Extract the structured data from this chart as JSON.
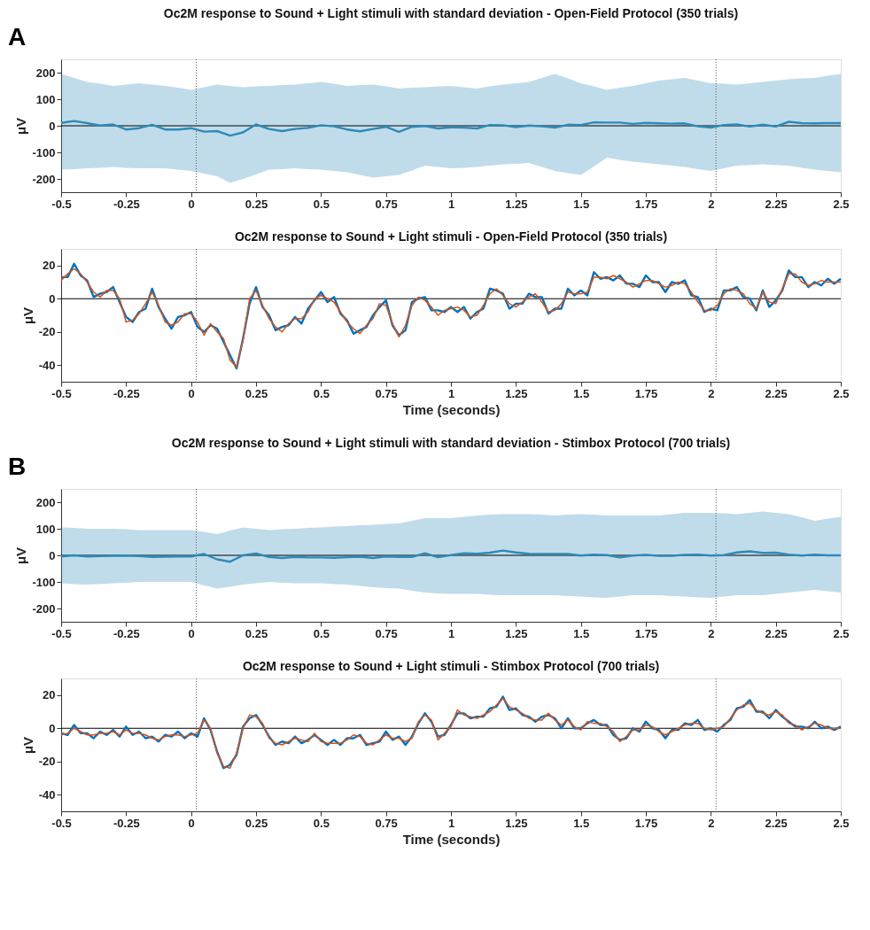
{
  "chart_data": [
    {
      "type": "line",
      "title": "Oc2M response to Sound + Light stimuli with standard deviation - Open-Field Protocol (350 trials)",
      "ylabel": "μV",
      "annotations": [
        "A"
      ],
      "xlim": [
        -0.5,
        2.5
      ],
      "ylim": [
        -250,
        250
      ],
      "xticks": [
        -0.5,
        -0.25,
        0,
        0.25,
        0.5,
        0.75,
        1,
        1.25,
        1.5,
        1.75,
        2,
        2.25,
        2.5
      ],
      "yticks": [
        -200,
        -100,
        0,
        100,
        200
      ],
      "x": [
        -0.5,
        -0.45,
        -0.4,
        -0.35,
        -0.3,
        -0.25,
        -0.2,
        -0.15,
        -0.1,
        -0.05,
        0,
        0.05,
        0.1,
        0.15,
        0.2,
        0.25,
        0.3,
        0.35,
        0.4,
        0.45,
        0.5,
        0.55,
        0.6,
        0.65,
        0.7,
        0.75,
        0.8,
        0.85,
        0.9,
        0.95,
        1,
        1.05,
        1.1,
        1.15,
        1.2,
        1.25,
        1.3,
        1.35,
        1.4,
        1.45,
        1.5,
        1.55,
        1.6,
        1.65,
        1.7,
        1.75,
        1.8,
        1.85,
        1.9,
        1.95,
        2,
        2.05,
        2.1,
        2.15,
        2.2,
        2.25,
        2.3,
        2.35,
        2.4,
        2.45,
        2.5
      ],
      "series": [
        {
          "color": "#2e8ab8",
          "values": [
            11,
            18,
            10,
            1,
            5,
            -14,
            -9,
            4,
            -14,
            -14,
            -9,
            -22,
            -20,
            -37,
            -25,
            5,
            -12,
            -20,
            -12,
            -8,
            2,
            -2,
            -14,
            -21,
            -12,
            -4,
            -23,
            -4,
            -1,
            -10,
            -6,
            -7,
            -10,
            3,
            2,
            -5,
            1,
            -2,
            -7,
            4,
            3,
            13,
            12,
            12,
            7,
            11,
            9,
            8,
            9,
            -2,
            -7,
            3,
            5,
            -3,
            4,
            -3,
            15,
            10,
            9,
            10,
            10
          ],
          "upper": [
            195,
            180,
            165,
            158,
            150,
            155,
            160,
            155,
            150,
            143,
            135,
            145,
            155,
            150,
            145,
            148,
            150,
            153,
            155,
            160,
            165,
            158,
            150,
            153,
            155,
            148,
            140,
            143,
            145,
            148,
            150,
            145,
            140,
            148,
            155,
            160,
            165,
            180,
            195,
            178,
            160,
            148,
            135,
            143,
            150,
            160,
            170,
            175,
            180,
            170,
            160,
            158,
            155,
            160,
            165,
            170,
            175,
            178,
            180,
            188,
            195
          ],
          "lower": [
            -165,
            -163,
            -160,
            -158,
            -155,
            -158,
            -160,
            -160,
            -160,
            -165,
            -170,
            -180,
            -190,
            -215,
            -200,
            -183,
            -165,
            -163,
            -160,
            -163,
            -165,
            -170,
            -175,
            -185,
            -195,
            -190,
            -185,
            -168,
            -150,
            -155,
            -160,
            -158,
            -155,
            -150,
            -145,
            -143,
            -140,
            -155,
            -170,
            -178,
            -185,
            -153,
            -120,
            -128,
            -135,
            -140,
            -145,
            -150,
            -155,
            -163,
            -170,
            -160,
            -150,
            -148,
            -145,
            -148,
            -150,
            -158,
            -165,
            -170,
            -175
          ]
        }
      ],
      "ref_lines": [
        {
          "axis": "y",
          "value": 0,
          "color": "#000000",
          "line_style": "solid"
        },
        {
          "axis": "x",
          "value": 0.02,
          "color": "#555555",
          "line_style": "dotted"
        },
        {
          "axis": "x",
          "value": 2.02,
          "color": "#555555",
          "line_style": "dotted"
        }
      ]
    },
    {
      "type": "line",
      "title": "Oc2M response to Sound + Light stimuli - Open-Field Protocol (350 trials)",
      "xlabel": "Time (seconds)",
      "ylabel": "μV",
      "xlim": [
        -0.5,
        2.5
      ],
      "ylim": [
        -50,
        30
      ],
      "xticks": [
        -0.5,
        -0.25,
        0,
        0.25,
        0.5,
        0.75,
        1,
        1.25,
        1.5,
        1.75,
        2,
        2.25,
        2.5
      ],
      "yticks": [
        -40,
        -20,
        0,
        20
      ],
      "x": [
        -0.5,
        -0.475,
        -0.45,
        -0.425,
        -0.4,
        -0.375,
        -0.35,
        -0.325,
        -0.3,
        -0.275,
        -0.25,
        -0.225,
        -0.2,
        -0.175,
        -0.15,
        -0.125,
        -0.1,
        -0.075,
        -0.05,
        -0.025,
        0,
        0.025,
        0.05,
        0.075,
        0.1,
        0.125,
        0.15,
        0.175,
        0.2,
        0.225,
        0.25,
        0.275,
        0.3,
        0.325,
        0.35,
        0.375,
        0.4,
        0.425,
        0.45,
        0.475,
        0.5,
        0.525,
        0.55,
        0.575,
        0.6,
        0.625,
        0.65,
        0.675,
        0.7,
        0.725,
        0.75,
        0.775,
        0.8,
        0.825,
        0.85,
        0.875,
        0.9,
        0.925,
        0.95,
        0.975,
        1,
        1.025,
        1.05,
        1.075,
        1.1,
        1.125,
        1.15,
        1.175,
        1.2,
        1.225,
        1.25,
        1.275,
        1.3,
        1.325,
        1.35,
        1.375,
        1.4,
        1.425,
        1.45,
        1.475,
        1.5,
        1.525,
        1.55,
        1.575,
        1.6,
        1.625,
        1.65,
        1.675,
        1.7,
        1.725,
        1.75,
        1.775,
        1.8,
        1.825,
        1.85,
        1.875,
        1.9,
        1.925,
        1.95,
        1.975,
        2,
        2.025,
        2.05,
        2.075,
        2.1,
        2.125,
        2.15,
        2.175,
        2.2,
        2.225,
        2.25,
        2.275,
        2.3,
        2.325,
        2.35,
        2.375,
        2.4,
        2.425,
        2.45,
        2.475,
        2.5
      ],
      "series": [
        {
          "color": "#0072bd",
          "values": [
            13,
            13,
            21,
            14,
            11,
            1,
            3,
            4,
            7,
            -2,
            -11,
            -14,
            -8,
            -6,
            6,
            -5,
            -12,
            -18,
            -11,
            -10,
            -8,
            -17,
            -20,
            -16,
            -18,
            -26,
            -34,
            -42,
            -24,
            -3,
            7,
            -5,
            -10,
            -19,
            -17,
            -16,
            -11,
            -15,
            -6,
            -1,
            4,
            -2,
            1,
            -9,
            -13,
            -21,
            -19,
            -17,
            -10,
            -5,
            -1,
            -16,
            -22,
            -19,
            -2,
            0,
            1,
            -7,
            -7,
            -8,
            -5,
            -8,
            -5,
            -12,
            -8,
            -6,
            6,
            5,
            3,
            -6,
            -3,
            -3,
            3,
            1,
            1,
            -9,
            -6,
            -6,
            6,
            2,
            5,
            2,
            16,
            12,
            13,
            11,
            14,
            9,
            9,
            7,
            14,
            10,
            10,
            4,
            10,
            9,
            11,
            2,
            1,
            -8,
            -6,
            -7,
            5,
            5,
            7,
            1,
            0,
            -7,
            5,
            -5,
            -1,
            5,
            17,
            13,
            13,
            7,
            10,
            8,
            12,
            9,
            12
          ]
        },
        {
          "color": "#d95319",
          "values": [
            11,
            15,
            18,
            15,
            10,
            4,
            1,
            5,
            5,
            0,
            -14,
            -13,
            -9,
            -3,
            4,
            -4,
            -14,
            -16,
            -14,
            -9,
            -9,
            -14,
            -22,
            -15,
            -20,
            -24,
            -37,
            -41,
            -25,
            0,
            5,
            -4,
            -12,
            -17,
            -20,
            -15,
            -12,
            -12,
            -8,
            0,
            2,
            0,
            -2,
            -8,
            -14,
            -18,
            -21,
            -16,
            -12,
            -3,
            -4,
            -15,
            -23,
            -16,
            -4,
            1,
            -1,
            -5,
            -10,
            -7,
            -6,
            -5,
            -7,
            -11,
            -10,
            -4,
            3,
            6,
            2,
            -3,
            -5,
            -2,
            1,
            3,
            -2,
            -8,
            -7,
            -3,
            4,
            3,
            3,
            4,
            13,
            13,
            12,
            14,
            12,
            10,
            7,
            9,
            11,
            11,
            9,
            7,
            8,
            10,
            9,
            4,
            -2,
            -7,
            -7,
            -4,
            3,
            6,
            5,
            3,
            -3,
            -6,
            4,
            -2,
            -3,
            6,
            15,
            15,
            10,
            8,
            9,
            11,
            10,
            10,
            10
          ]
        }
      ],
      "ref_lines": [
        {
          "axis": "y",
          "value": 0,
          "color": "#000000",
          "line_style": "solid"
        },
        {
          "axis": "x",
          "value": 0.02,
          "color": "#555555",
          "line_style": "dotted"
        },
        {
          "axis": "x",
          "value": 2.02,
          "color": "#555555",
          "line_style": "dotted"
        }
      ]
    },
    {
      "type": "line",
      "title": "Oc2M response to Sound + Light stimuli with standard deviation - Stimbox Protocol (700 trials)",
      "ylabel": "μV",
      "annotations": [
        "B"
      ],
      "xlim": [
        -0.5,
        2.5
      ],
      "ylim": [
        -250,
        250
      ],
      "xticks": [
        -0.5,
        -0.25,
        0,
        0.25,
        0.5,
        0.75,
        1,
        1.25,
        1.5,
        1.75,
        2,
        2.25,
        2.5
      ],
      "yticks": [
        -200,
        -100,
        0,
        100,
        200
      ],
      "x": [
        -0.5,
        -0.45,
        -0.4,
        -0.35,
        -0.3,
        -0.25,
        -0.2,
        -0.15,
        -0.1,
        -0.05,
        0,
        0.05,
        0.1,
        0.15,
        0.2,
        0.25,
        0.3,
        0.35,
        0.4,
        0.45,
        0.5,
        0.55,
        0.6,
        0.65,
        0.7,
        0.75,
        0.8,
        0.85,
        0.9,
        0.95,
        1,
        1.05,
        1.1,
        1.15,
        1.2,
        1.25,
        1.3,
        1.35,
        1.4,
        1.45,
        1.5,
        1.55,
        1.6,
        1.65,
        1.7,
        1.75,
        1.8,
        1.85,
        1.9,
        1.95,
        2,
        2.05,
        2.1,
        2.15,
        2.2,
        2.25,
        2.3,
        2.35,
        2.4,
        2.45,
        2.5
      ],
      "series": [
        {
          "color": "#2e8ab8",
          "values": [
            -4,
            0,
            -4,
            -3,
            -2,
            -1,
            -3,
            -6,
            -5,
            -4,
            -4,
            5,
            -15,
            -24,
            0,
            7,
            -6,
            -10,
            -6,
            -8,
            -8,
            -9,
            -7,
            -5,
            -10,
            -4,
            -6,
            -6,
            8,
            -7,
            1,
            8,
            6,
            10,
            18,
            11,
            6,
            5,
            5,
            5,
            -1,
            3,
            1,
            -8,
            -1,
            2,
            -2,
            -2,
            2,
            3,
            -1,
            1,
            11,
            15,
            9,
            10,
            3,
            -1,
            3,
            0,
            0
          ],
          "upper": [
            105,
            103,
            100,
            100,
            100,
            98,
            95,
            95,
            95,
            95,
            95,
            88,
            80,
            93,
            105,
            100,
            95,
            98,
            100,
            103,
            105,
            108,
            110,
            113,
            115,
            118,
            120,
            130,
            140,
            140,
            140,
            145,
            150,
            153,
            155,
            155,
            155,
            153,
            150,
            153,
            155,
            153,
            150,
            150,
            150,
            150,
            150,
            155,
            160,
            160,
            160,
            158,
            155,
            160,
            165,
            160,
            155,
            143,
            130,
            138,
            145
          ],
          "lower": [
            -105,
            -108,
            -110,
            -108,
            -105,
            -103,
            -100,
            -100,
            -100,
            -100,
            -100,
            -113,
            -125,
            -118,
            -110,
            -105,
            -100,
            -103,
            -105,
            -105,
            -105,
            -108,
            -110,
            -115,
            -120,
            -123,
            -125,
            -133,
            -140,
            -143,
            -145,
            -145,
            -145,
            -148,
            -150,
            -150,
            -150,
            -150,
            -150,
            -153,
            -155,
            -158,
            -160,
            -155,
            -150,
            -150,
            -150,
            -153,
            -155,
            -158,
            -160,
            -155,
            -150,
            -150,
            -150,
            -145,
            -140,
            -135,
            -130,
            -135,
            -140
          ]
        }
      ],
      "ref_lines": [
        {
          "axis": "y",
          "value": 0,
          "color": "#000000",
          "line_style": "solid"
        },
        {
          "axis": "x",
          "value": 0.02,
          "color": "#555555",
          "line_style": "dotted"
        },
        {
          "axis": "x",
          "value": 2.02,
          "color": "#555555",
          "line_style": "dotted"
        }
      ]
    },
    {
      "type": "line",
      "title": "Oc2M response to Sound + Light stimuli - Stimbox Protocol (700 trials)",
      "xlabel": "Time (seconds)",
      "ylabel": "μV",
      "xlim": [
        -0.5,
        2.5
      ],
      "ylim": [
        -50,
        30
      ],
      "xticks": [
        -0.5,
        -0.25,
        0,
        0.25,
        0.5,
        0.75,
        1,
        1.25,
        1.5,
        1.75,
        2,
        2.25,
        2.5
      ],
      "yticks": [
        -40,
        -20,
        0,
        20
      ],
      "x": [
        -0.5,
        -0.475,
        -0.45,
        -0.425,
        -0.4,
        -0.375,
        -0.35,
        -0.325,
        -0.3,
        -0.275,
        -0.25,
        -0.225,
        -0.2,
        -0.175,
        -0.15,
        -0.125,
        -0.1,
        -0.075,
        -0.05,
        -0.025,
        0,
        0.025,
        0.05,
        0.075,
        0.1,
        0.125,
        0.15,
        0.175,
        0.2,
        0.225,
        0.25,
        0.275,
        0.3,
        0.325,
        0.35,
        0.375,
        0.4,
        0.425,
        0.45,
        0.475,
        0.5,
        0.525,
        0.55,
        0.575,
        0.6,
        0.625,
        0.65,
        0.675,
        0.7,
        0.725,
        0.75,
        0.775,
        0.8,
        0.825,
        0.85,
        0.875,
        0.9,
        0.925,
        0.95,
        0.975,
        1,
        1.025,
        1.05,
        1.075,
        1.1,
        1.125,
        1.15,
        1.175,
        1.2,
        1.225,
        1.25,
        1.275,
        1.3,
        1.325,
        1.35,
        1.375,
        1.4,
        1.425,
        1.45,
        1.475,
        1.5,
        1.525,
        1.55,
        1.575,
        1.6,
        1.625,
        1.65,
        1.675,
        1.7,
        1.725,
        1.75,
        1.775,
        1.8,
        1.825,
        1.85,
        1.875,
        1.9,
        1.925,
        1.95,
        1.975,
        2,
        2.025,
        2.05,
        2.075,
        2.1,
        2.125,
        2.15,
        2.175,
        2.2,
        2.225,
        2.25,
        2.275,
        2.3,
        2.325,
        2.35,
        2.375,
        2.4,
        2.425,
        2.45,
        2.475,
        2.5
      ],
      "series": [
        {
          "color": "#0072bd",
          "values": [
            -3,
            -4,
            2,
            -3,
            -3,
            -6,
            -2,
            -4,
            -1,
            -5,
            1,
            -4,
            -2,
            -6,
            -5,
            -8,
            -4,
            -5,
            -2,
            -6,
            -3,
            -5,
            6,
            -1,
            -14,
            -24,
            -22,
            -16,
            1,
            6,
            8,
            2,
            -5,
            -10,
            -8,
            -9,
            -5,
            -9,
            -7,
            -4,
            -7,
            -10,
            -7,
            -10,
            -6,
            -6,
            -4,
            -10,
            -9,
            -8,
            -2,
            -7,
            -5,
            -10,
            -5,
            3,
            9,
            4,
            -5,
            -4,
            2,
            9,
            9,
            6,
            7,
            7,
            12,
            13,
            19,
            11,
            12,
            8,
            7,
            4,
            7,
            8,
            6,
            0,
            6,
            0,
            0,
            3,
            5,
            2,
            2,
            -4,
            -7,
            -6,
            0,
            -2,
            4,
            0,
            -1,
            -6,
            -1,
            -1,
            3,
            2,
            5,
            -1,
            0,
            -2,
            2,
            5,
            12,
            13,
            17,
            10,
            10,
            6,
            11,
            7,
            4,
            1,
            1,
            0,
            4,
            0,
            1,
            -1,
            1
          ]
        },
        {
          "color": "#d95319",
          "values": [
            -4,
            -3,
            0,
            -2,
            -4,
            -4,
            -3,
            -3,
            -2,
            -4,
            -1,
            -3,
            -3,
            -4,
            -6,
            -7,
            -5,
            -4,
            -4,
            -5,
            -4,
            -3,
            5,
            0,
            -15,
            -23,
            -24,
            -15,
            0,
            8,
            7,
            3,
            -6,
            -9,
            -10,
            -8,
            -6,
            -7,
            -8,
            -3,
            -8,
            -9,
            -9,
            -9,
            -7,
            -4,
            -5,
            -9,
            -10,
            -7,
            -4,
            -6,
            -6,
            -8,
            -6,
            4,
            8,
            5,
            -7,
            -3,
            1,
            11,
            8,
            7,
            6,
            8,
            10,
            14,
            18,
            13,
            11,
            9,
            6,
            5,
            5,
            9,
            5,
            2,
            5,
            1,
            -1,
            4,
            3,
            3,
            1,
            -2,
            -8,
            -5,
            -1,
            -1,
            2,
            1,
            -2,
            -4,
            -2,
            0,
            2,
            3,
            3,
            0,
            -1,
            0,
            1,
            6,
            11,
            14,
            15,
            11,
            9,
            8,
            10,
            8,
            3,
            2,
            -1,
            1,
            3,
            2,
            0,
            0,
            0
          ]
        }
      ],
      "ref_lines": [
        {
          "axis": "y",
          "value": 0,
          "color": "#000000",
          "line_style": "solid"
        },
        {
          "axis": "x",
          "value": 0.02,
          "color": "#555555",
          "line_style": "dotted"
        },
        {
          "axis": "x",
          "value": 2.02,
          "color": "#555555",
          "line_style": "dotted"
        }
      ]
    }
  ]
}
